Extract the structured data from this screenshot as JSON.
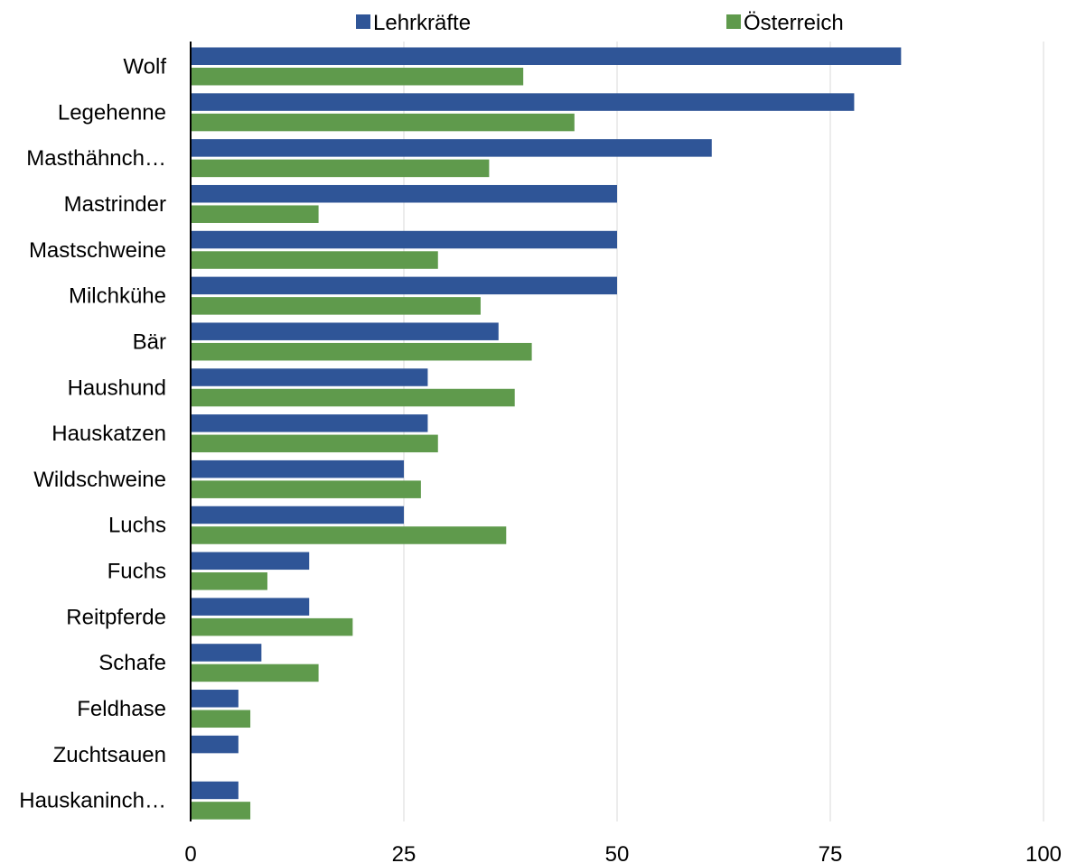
{
  "chart_data": {
    "type": "bar",
    "orientation": "horizontal",
    "categories": [
      "Wolf",
      "Legehenne",
      "Masthähnch…",
      "Mastrinder",
      "Mastschweine",
      "Milchkühe",
      "Bär",
      "Haushund",
      "Hauskatzen",
      "Wildschweine",
      "Luchs",
      "Fuchs",
      "Reitpferde",
      "Schafe",
      "Feldhase",
      "Zuchtsauen",
      "Hauskaninch…"
    ],
    "series": [
      {
        "name": "Lehrkräfte",
        "color": "#2f5597",
        "values": [
          83.3,
          77.8,
          61.1,
          50,
          50,
          50,
          36.1,
          27.8,
          27.8,
          25,
          25,
          13.9,
          13.9,
          8.3,
          5.6,
          5.6,
          5.6
        ]
      },
      {
        "name": "Österreich",
        "color": "#5f9a4c",
        "values": [
          39,
          45,
          35,
          15,
          29,
          34,
          40,
          38,
          29,
          27,
          37,
          9,
          19,
          15,
          7,
          null,
          7
        ]
      }
    ],
    "xlim": [
      0,
      100
    ],
    "xticks": [
      "0",
      "25",
      "50",
      "75",
      "100"
    ],
    "grid": true,
    "legend_position": "top"
  }
}
